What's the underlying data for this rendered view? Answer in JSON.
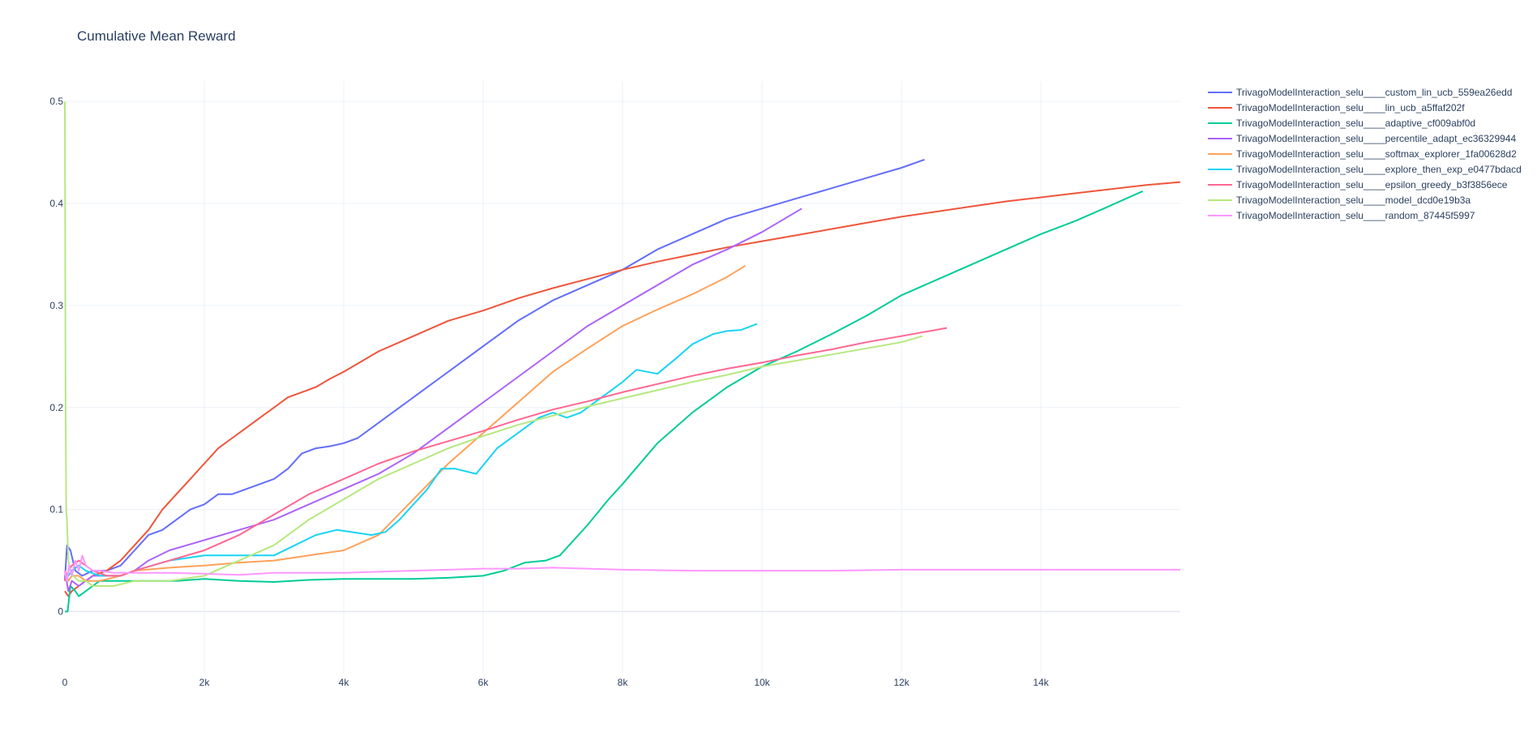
{
  "chart_data": {
    "type": "line",
    "title": "Cumulative Mean Reward",
    "xlabel": "",
    "ylabel": "",
    "xlim": [
      0,
      16000
    ],
    "ylim": [
      -0.06,
      0.52
    ],
    "x_ticks": [
      0,
      2000,
      4000,
      6000,
      8000,
      10000,
      12000,
      14000
    ],
    "x_tick_labels": [
      "0",
      "2k",
      "4k",
      "6k",
      "8k",
      "10k",
      "12k",
      "14k"
    ],
    "y_ticks": [
      0,
      0.1,
      0.2,
      0.3,
      0.4,
      0.5
    ],
    "y_tick_labels": [
      "0",
      "0.1",
      "0.2",
      "0.3",
      "0.4",
      "0.5"
    ],
    "grid": true,
    "legend_position": "top-right outside",
    "series": [
      {
        "name": "TrivagoModelInteraction_selu____custom_lin_ucb_559ea26edd",
        "color": "#636efa",
        "x": [
          0,
          30,
          80,
          150,
          250,
          400,
          600,
          800,
          1000,
          1200,
          1400,
          1600,
          1800,
          2000,
          2200,
          2400,
          2600,
          2800,
          3000,
          3200,
          3400,
          3600,
          3800,
          4000,
          4200,
          4400,
          4600,
          4800,
          5000,
          5200,
          5400,
          5600,
          5800,
          6000,
          6500,
          7000,
          7500,
          8000,
          8500,
          9000,
          9500,
          10000,
          10500,
          11000,
          11500,
          12000,
          12330
        ],
        "y": [
          0.03,
          0.065,
          0.06,
          0.04,
          0.035,
          0.04,
          0.04,
          0.045,
          0.06,
          0.075,
          0.08,
          0.09,
          0.1,
          0.105,
          0.115,
          0.115,
          0.12,
          0.125,
          0.13,
          0.14,
          0.155,
          0.16,
          0.162,
          0.165,
          0.17,
          0.18,
          0.19,
          0.2,
          0.21,
          0.22,
          0.23,
          0.24,
          0.25,
          0.26,
          0.285,
          0.305,
          0.32,
          0.335,
          0.355,
          0.37,
          0.385,
          0.395,
          0.405,
          0.415,
          0.425,
          0.435,
          0.443
        ]
      },
      {
        "name": "TrivagoModelInteraction_selu____lin_ucb_a5ffaf202f",
        "color": "#ef553b",
        "x": [
          0,
          50,
          100,
          200,
          300,
          400,
          600,
          800,
          1000,
          1200,
          1400,
          1600,
          1800,
          2000,
          2200,
          2400,
          2600,
          2800,
          3000,
          3200,
          3400,
          3600,
          3800,
          4000,
          4500,
          5000,
          5500,
          6000,
          6500,
          7000,
          7500,
          8000,
          8500,
          9000,
          9500,
          10000,
          10500,
          11000,
          11500,
          12000,
          12500,
          13000,
          13500,
          14000,
          14500,
          15000,
          15500,
          16000
        ],
        "y": [
          0.02,
          0.015,
          0.02,
          0.025,
          0.03,
          0.035,
          0.04,
          0.05,
          0.065,
          0.08,
          0.1,
          0.115,
          0.13,
          0.145,
          0.16,
          0.17,
          0.18,
          0.19,
          0.2,
          0.21,
          0.215,
          0.22,
          0.228,
          0.235,
          0.255,
          0.27,
          0.285,
          0.295,
          0.307,
          0.317,
          0.326,
          0.335,
          0.343,
          0.35,
          0.357,
          0.363,
          0.369,
          0.375,
          0.381,
          0.387,
          0.392,
          0.397,
          0.402,
          0.406,
          0.41,
          0.414,
          0.418,
          0.421
        ]
      },
      {
        "name": "TrivagoModelInteraction_selu____adaptive_cf009abf0d",
        "color": "#00cc96",
        "x": [
          0,
          40,
          80,
          150,
          200,
          300,
          400,
          500,
          800,
          1200,
          1600,
          2000,
          2500,
          3000,
          3500,
          4000,
          4500,
          5000,
          5500,
          6000,
          6300,
          6600,
          6900,
          7100,
          7300,
          7500,
          7800,
          8000,
          8500,
          9000,
          9500,
          10000,
          10500,
          11000,
          11500,
          12000,
          12500,
          13000,
          13500,
          14000,
          14500,
          15000,
          15460
        ],
        "y": [
          0.0,
          0.0,
          0.025,
          0.02,
          0.015,
          0.02,
          0.025,
          0.03,
          0.03,
          0.03,
          0.03,
          0.032,
          0.03,
          0.029,
          0.031,
          0.032,
          0.032,
          0.032,
          0.033,
          0.035,
          0.04,
          0.048,
          0.05,
          0.055,
          0.07,
          0.085,
          0.11,
          0.125,
          0.165,
          0.195,
          0.22,
          0.24,
          0.255,
          0.272,
          0.29,
          0.31,
          0.325,
          0.34,
          0.355,
          0.37,
          0.383,
          0.398,
          0.412
        ]
      },
      {
        "name": "TrivagoModelInteraction_selu____percentile_adapt_ec36329944",
        "color": "#ab63fa",
        "x": [
          0,
          50,
          100,
          200,
          300,
          400,
          600,
          800,
          1000,
          1200,
          1500,
          2000,
          2500,
          3000,
          3500,
          4000,
          4500,
          5000,
          5500,
          6000,
          6500,
          7000,
          7500,
          8000,
          8500,
          9000,
          9500,
          10000,
          10570
        ],
        "y": [
          0.04,
          0.02,
          0.03,
          0.025,
          0.03,
          0.035,
          0.035,
          0.035,
          0.04,
          0.05,
          0.06,
          0.07,
          0.08,
          0.09,
          0.105,
          0.12,
          0.135,
          0.155,
          0.18,
          0.205,
          0.23,
          0.255,
          0.28,
          0.3,
          0.32,
          0.34,
          0.355,
          0.372,
          0.395
        ]
      },
      {
        "name": "TrivagoModelInteraction_selu____softmax_explorer_1fa00628d2",
        "color": "#ffa15a",
        "x": [
          0,
          50,
          100,
          200,
          300,
          500,
          800,
          1000,
          1500,
          2000,
          2500,
          3000,
          3500,
          4000,
          4500,
          5000,
          5500,
          6000,
          6500,
          7000,
          7500,
          8000,
          8500,
          9000,
          9500,
          9760
        ],
        "y": [
          0.04,
          0.03,
          0.035,
          0.035,
          0.03,
          0.03,
          0.035,
          0.04,
          0.043,
          0.045,
          0.048,
          0.05,
          0.055,
          0.06,
          0.075,
          0.11,
          0.145,
          0.175,
          0.205,
          0.235,
          0.258,
          0.28,
          0.296,
          0.311,
          0.328,
          0.339
        ]
      },
      {
        "name": "TrivagoModelInteraction_selu____explore_then_exp_e0477bdacd",
        "color": "#19d3f3",
        "x": [
          0,
          50,
          100,
          200,
          300,
          500,
          800,
          1000,
          1500,
          2000,
          2500,
          3000,
          3300,
          3600,
          3900,
          4100,
          4400,
          4600,
          4800,
          5000,
          5200,
          5400,
          5600,
          5900,
          6200,
          6500,
          6800,
          7000,
          7200,
          7400,
          7700,
          8000,
          8200,
          8500,
          8800,
          9000,
          9300,
          9500,
          9700,
          9930
        ],
        "y": [
          0.03,
          0.035,
          0.04,
          0.045,
          0.04,
          0.035,
          0.035,
          0.04,
          0.05,
          0.055,
          0.055,
          0.055,
          0.065,
          0.075,
          0.08,
          0.078,
          0.075,
          0.078,
          0.09,
          0.105,
          0.12,
          0.14,
          0.14,
          0.135,
          0.16,
          0.175,
          0.19,
          0.195,
          0.19,
          0.195,
          0.21,
          0.225,
          0.237,
          0.233,
          0.25,
          0.262,
          0.272,
          0.275,
          0.276,
          0.282
        ]
      },
      {
        "name": "TrivagoModelInteraction_selu____epsilon_greedy_b3f3856ece",
        "color": "#ff6692",
        "x": [
          0,
          50,
          100,
          200,
          300,
          400,
          600,
          800,
          1000,
          1500,
          2000,
          2500,
          3000,
          3500,
          4000,
          4500,
          5000,
          5500,
          6000,
          6500,
          7000,
          7500,
          8000,
          8500,
          9000,
          9500,
          10000,
          10500,
          11000,
          11500,
          12000,
          12650
        ],
        "y": [
          0.03,
          0.04,
          0.045,
          0.05,
          0.045,
          0.04,
          0.035,
          0.035,
          0.04,
          0.05,
          0.06,
          0.075,
          0.095,
          0.115,
          0.13,
          0.145,
          0.157,
          0.167,
          0.177,
          0.188,
          0.198,
          0.206,
          0.215,
          0.223,
          0.231,
          0.238,
          0.244,
          0.251,
          0.257,
          0.264,
          0.27,
          0.278
        ]
      },
      {
        "name": "TrivagoModelInteraction_selu____model_dcd0e19b3a",
        "color": "#b6e880",
        "x": [
          0,
          10,
          20,
          30,
          50,
          80,
          120,
          200,
          300,
          400,
          500,
          700,
          1000,
          1500,
          2000,
          2500,
          3000,
          3500,
          4000,
          4500,
          5000,
          5500,
          6000,
          6500,
          7000,
          7500,
          8000,
          8500,
          9000,
          9500,
          10000,
          10500,
          11000,
          11500,
          12000,
          12300
        ],
        "y": [
          0.5,
          0.2,
          0.1,
          0.09,
          0.05,
          0.04,
          0.035,
          0.03,
          0.03,
          0.025,
          0.025,
          0.025,
          0.03,
          0.03,
          0.035,
          0.05,
          0.065,
          0.09,
          0.11,
          0.13,
          0.145,
          0.16,
          0.172,
          0.183,
          0.192,
          0.201,
          0.209,
          0.217,
          0.225,
          0.232,
          0.24,
          0.246,
          0.252,
          0.258,
          0.264,
          0.27
        ]
      },
      {
        "name": "TrivagoModelInteraction_selu____random_87445f5997",
        "color": "#ff97ff",
        "x": [
          0,
          30,
          60,
          100,
          150,
          200,
          250,
          300,
          400,
          500,
          700,
          1000,
          1500,
          2000,
          2500,
          3000,
          3500,
          4000,
          4500,
          5000,
          5500,
          6000,
          6500,
          7000,
          7500,
          8000,
          9000,
          10000,
          11000,
          12000,
          13000,
          14000,
          15000,
          16000
        ],
        "y": [
          0.04,
          0.03,
          0.045,
          0.035,
          0.05,
          0.04,
          0.055,
          0.045,
          0.04,
          0.04,
          0.038,
          0.038,
          0.038,
          0.037,
          0.036,
          0.038,
          0.038,
          0.038,
          0.039,
          0.04,
          0.041,
          0.042,
          0.042,
          0.043,
          0.042,
          0.041,
          0.04,
          0.04,
          0.04,
          0.041,
          0.041,
          0.041,
          0.041,
          0.041
        ]
      }
    ]
  }
}
